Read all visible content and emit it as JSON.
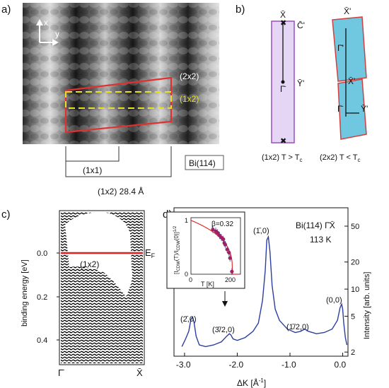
{
  "panels": {
    "a": {
      "label": "a)",
      "axis_x": "x",
      "axis_y": "y",
      "label_2x2": "(2x2)",
      "label_1x2": "(1x2)",
      "label_1x1": "(1x1)",
      "label_bi114": "Bi(114)",
      "label_period": "(1x2) 28.4 Å",
      "colors": {
        "cell_2x2": "#e03030",
        "cell_1x2": "#e8e020"
      }
    },
    "b": {
      "label": "b)",
      "left": {
        "x_top": "X̄",
        "c_prime": "C̄'",
        "y_prime": "Ȳ'",
        "gamma": "Γ̄",
        "caption": "(1x2)  T > T",
        "caption_sub": "c",
        "fill": "#e4d6f4",
        "stroke": "#9a4fc0"
      },
      "right": {
        "x_prime_top": "X̄'",
        "gamma_top": "Γ̄'",
        "x_prime_mid": "X̄'",
        "gamma_bottom": "Γ̄",
        "y_prime": "Ȳ'",
        "caption": "(2x2)  T < T",
        "caption_sub": "c",
        "fill": "#6fc7e0",
        "stroke": "#d04040"
      }
    },
    "c": {
      "label": "c)",
      "ylabel": "binding energy [eV]",
      "yticks": [
        "0.0",
        "0.2",
        "0.4"
      ],
      "xticks": [
        "Γ̄",
        "X̄"
      ],
      "fermi_label": "E",
      "fermi_sub": "F",
      "region_label": "(1x2)",
      "fermi_color": "#e02020"
    },
    "d": {
      "label": "d)",
      "title": "Bi(114) Γ̄X̄",
      "temperature": "113 K",
      "xlabel": "ΔK [Å",
      "xlabel_sup": "-1",
      "xlabel_end": "]",
      "ylabel": "Intensity [arb. units]",
      "peak_labels": [
        "(2̄,0)",
        "(3̄/2,0)",
        "(1̄,0)",
        "(1̄/2,0)",
        "(0,0)"
      ],
      "inset": {
        "beta": "β=0.32",
        "ylabel": "[I",
        "xlabel": "T [K]",
        "xticks": [
          "0",
          "200"
        ],
        "yticks": [
          "0",
          "1"
        ]
      }
    }
  },
  "chart_data": {
    "type": "line",
    "title": "Bi(114) Γ̄X̄",
    "annotation": "113 K",
    "xlabel": "ΔK [Å-1]",
    "ylabel": "Intensity [arb. units]",
    "yscale": "log",
    "xlim": [
      -3.2,
      0.1
    ],
    "ylim": [
      1.8,
      80
    ],
    "xticks": [
      "-3.0",
      "-2.0",
      "-1.0",
      "0.0"
    ],
    "yticks": [
      "2",
      "5",
      "10",
      "20",
      "50"
    ],
    "line_color": "#2c3ea0",
    "series": [
      {
        "x": [
          -3.05,
          -2.98,
          -2.92,
          -2.88,
          -2.85,
          -2.82,
          -2.78,
          -2.72,
          -2.6,
          -2.45,
          -2.3,
          -2.2,
          -2.15,
          -2.12,
          -2.08,
          -2.0,
          -1.85,
          -1.7,
          -1.6,
          -1.52,
          -1.47,
          -1.44,
          -1.41,
          -1.38,
          -1.34,
          -1.28,
          -1.2,
          -1.05,
          -0.9,
          -0.8,
          -0.72,
          -0.65,
          -0.5,
          -0.35,
          -0.2,
          -0.1,
          -0.05,
          -0.02,
          0.0,
          0.02,
          0.05,
          0.08
        ],
        "y": [
          2.3,
          2.8,
          3.4,
          4.6,
          4.9,
          4.3,
          3.0,
          2.4,
          2.3,
          2.4,
          2.6,
          3.0,
          3.2,
          3.1,
          2.8,
          2.7,
          2.9,
          3.4,
          4.2,
          7.5,
          16,
          35,
          38,
          26,
          11,
          6.0,
          4.5,
          3.6,
          3.3,
          3.4,
          3.6,
          3.4,
          3.2,
          3.3,
          3.6,
          4.5,
          6.2,
          6.8,
          6.0,
          4.2,
          2.9,
          2.4
        ]
      }
    ],
    "peak_labels": [
      "(2̄,0)",
      "(3̄/2,0)",
      "(1̄,0)",
      "(1̄/2,0)",
      "(0,0)"
    ],
    "inset": {
      "type": "scatter",
      "title": "β=0.32",
      "xlabel": "T [K]",
      "ylabel": "[I_CDW(T)/I_CDW(0)]^1/2",
      "xlim": [
        0,
        260
      ],
      "ylim": [
        0,
        1.05
      ],
      "xticks": [
        "0",
        "200"
      ],
      "yticks": [
        "0",
        "1"
      ],
      "points": {
        "x": [
          115,
          130,
          140,
          150,
          160,
          170,
          175,
          180,
          190,
          200,
          205,
          215
        ],
        "y": [
          0.83,
          0.8,
          0.77,
          0.72,
          0.68,
          0.65,
          0.58,
          0.55,
          0.46,
          0.4,
          0.3,
          0.05
        ]
      },
      "fit_color": "#e03030",
      "point_color": "#a02060"
    }
  }
}
